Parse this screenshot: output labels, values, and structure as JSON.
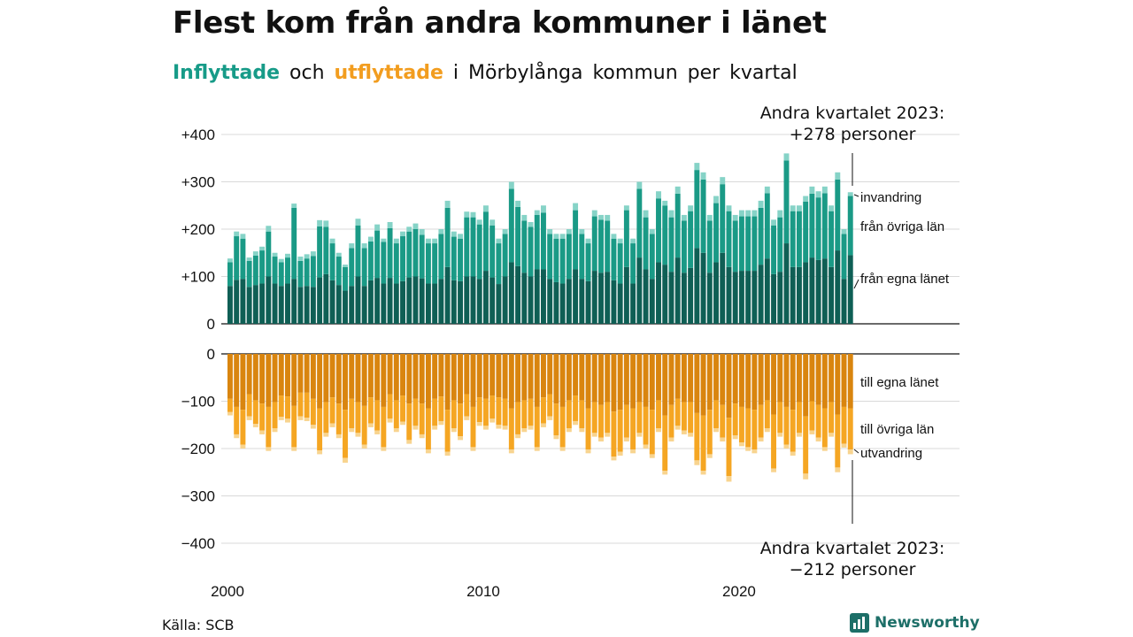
{
  "title": "Flest kom från andra kommuner i länet",
  "subtitle": {
    "part1": "Inflyttade",
    "part2": "och",
    "part3": "utflyttade",
    "part4": "i Mörbylånga kommun per kvartal"
  },
  "annotation_top": {
    "line1": "Andra kvartalet 2023:",
    "line2": "+278 personer"
  },
  "annotation_bottom": {
    "line1": "Andra kvartalet 2023:",
    "line2": "−212 personer"
  },
  "source": "Källa: SCB",
  "brand": "Newsworthy",
  "colors": {
    "in_egna": "#0f5f55",
    "in_ovriga": "#1a9a86",
    "in_invandring": "#86d3c7",
    "out_egna": "#d9850f",
    "out_ovriga": "#f5a623",
    "out_utvandring": "#f8d48f",
    "grid": "#d9d9d9",
    "axis": "#111111"
  },
  "chart_data": {
    "type": "bar",
    "stacked": true,
    "x_start": "2000Q1",
    "x_end": "2023Q2",
    "x_tick_labels": [
      "2000",
      "2010",
      "2020"
    ],
    "y_tick_labels_top": [
      "+400",
      "+300",
      "+200",
      "+100",
      "0"
    ],
    "y_tick_labels_bottom": [
      "0",
      "−100",
      "−200",
      "−300",
      "−400"
    ],
    "ylim_top": [
      0,
      400
    ],
    "ylim_bottom": [
      -400,
      0
    ],
    "series_labels": {
      "in_invandring": "invandring",
      "in_ovriga": "från övriga län",
      "in_egna": "från egna länet",
      "out_egna": "till egna länet",
      "out_ovriga": "till övriga län",
      "out_utvandring": "utvandring"
    },
    "inflyttade": {
      "total": [
        138,
        195,
        190,
        140,
        153,
        163,
        207,
        150,
        137,
        148,
        254,
        142,
        147,
        153,
        219,
        218,
        180,
        150,
        125,
        170,
        222,
        170,
        184,
        210,
        180,
        215,
        180,
        195,
        205,
        212,
        200,
        180,
        180,
        200,
        260,
        195,
        190,
        237,
        236,
        220,
        250,
        220,
        180,
        200,
        300,
        260,
        230,
        215,
        240,
        250,
        200,
        190,
        190,
        200,
        255,
        200,
        180,
        240,
        230,
        230,
        190,
        180,
        250,
        180,
        300,
        240,
        200,
        280,
        260,
        240,
        290,
        230,
        250,
        340,
        320,
        230,
        270,
        310,
        250,
        230,
        240,
        240,
        240,
        260,
        290,
        220,
        240,
        360,
        250,
        250,
        270,
        290,
        280,
        290,
        250,
        320,
        200,
        278
      ],
      "egna": [
        80,
        93,
        95,
        78,
        82,
        85,
        100,
        85,
        80,
        85,
        95,
        78,
        80,
        78,
        98,
        105,
        92,
        82,
        70,
        80,
        100,
        80,
        92,
        97,
        85,
        97,
        85,
        90,
        98,
        100,
        96,
        85,
        85,
        95,
        120,
        92,
        90,
        100,
        100,
        95,
        112,
        98,
        84,
        100,
        130,
        122,
        108,
        100,
        115,
        115,
        95,
        88,
        85,
        95,
        115,
        95,
        90,
        112,
        108,
        110,
        92,
        85,
        120,
        85,
        140,
        115,
        95,
        130,
        125,
        110,
        140,
        108,
        118,
        160,
        150,
        108,
        130,
        150,
        120,
        110,
        112,
        112,
        112,
        125,
        138,
        105,
        110,
        170,
        120,
        120,
        130,
        140,
        135,
        138,
        120,
        155,
        95,
        145
      ],
      "ovriga": [
        50,
        92,
        85,
        55,
        62,
        70,
        95,
        57,
        50,
        55,
        150,
        55,
        58,
        65,
        108,
        100,
        78,
        60,
        50,
        80,
        108,
        80,
        82,
        100,
        88,
        105,
        85,
        95,
        97,
        100,
        92,
        85,
        85,
        95,
        125,
        92,
        90,
        125,
        125,
        115,
        125,
        110,
        86,
        90,
        155,
        125,
        110,
        105,
        115,
        120,
        95,
        92,
        95,
        95,
        125,
        95,
        80,
        115,
        112,
        108,
        88,
        85,
        120,
        85,
        145,
        110,
        95,
        135,
        125,
        115,
        135,
        110,
        120,
        165,
        155,
        110,
        125,
        145,
        118,
        108,
        115,
        115,
        115,
        120,
        138,
        103,
        115,
        175,
        118,
        118,
        128,
        135,
        132,
        138,
        118,
        150,
        95,
        125
      ],
      "invandring": [
        8,
        10,
        10,
        7,
        9,
        8,
        12,
        8,
        7,
        8,
        9,
        9,
        9,
        10,
        13,
        13,
        10,
        8,
        5,
        10,
        14,
        10,
        10,
        13,
        7,
        13,
        10,
        10,
        10,
        12,
        12,
        10,
        10,
        10,
        15,
        11,
        10,
        12,
        11,
        10,
        13,
        12,
        10,
        10,
        15,
        13,
        12,
        10,
        10,
        15,
        10,
        10,
        10,
        10,
        15,
        10,
        10,
        13,
        10,
        12,
        10,
        10,
        10,
        10,
        15,
        15,
        10,
        15,
        10,
        15,
        15,
        12,
        12,
        15,
        15,
        12,
        15,
        15,
        12,
        12,
        13,
        13,
        13,
        15,
        14,
        12,
        15,
        15,
        12,
        12,
        12,
        15,
        13,
        14,
        12,
        15,
        10,
        8
      ]
    },
    "utflyttade": {
      "total": [
        -130,
        -178,
        -200,
        -140,
        -155,
        -170,
        -205,
        -165,
        -140,
        -145,
        -205,
        -140,
        -142,
        -158,
        -212,
        -175,
        -155,
        -178,
        -230,
        -165,
        -175,
        -200,
        -155,
        -170,
        -205,
        -145,
        -165,
        -150,
        -190,
        -160,
        -178,
        -210,
        -160,
        -150,
        -215,
        -165,
        -182,
        -140,
        -205,
        -152,
        -160,
        -145,
        -158,
        -160,
        -210,
        -178,
        -165,
        -160,
        -205,
        -155,
        -140,
        -180,
        -205,
        -165,
        -150,
        -165,
        -210,
        -175,
        -185,
        -175,
        -225,
        -215,
        -185,
        -210,
        -175,
        -200,
        -220,
        -165,
        -255,
        -185,
        -160,
        -170,
        -175,
        -235,
        -255,
        -220,
        -165,
        -185,
        -270,
        -180,
        -195,
        -205,
        -210,
        -185,
        -165,
        -250,
        -175,
        -200,
        -215,
        -175,
        -265,
        -170,
        -185,
        -205,
        -175,
        -250,
        -198,
        -212
      ],
      "egna": [
        -95,
        -112,
        -118,
        -85,
        -98,
        -105,
        -112,
        -102,
        -88,
        -90,
        -110,
        -82,
        -82,
        -95,
        -115,
        -102,
        -92,
        -105,
        -118,
        -95,
        -102,
        -110,
        -92,
        -98,
        -112,
        -85,
        -98,
        -88,
        -105,
        -95,
        -105,
        -115,
        -95,
        -90,
        -118,
        -98,
        -105,
        -85,
        -112,
        -92,
        -95,
        -88,
        -92,
        -95,
        -115,
        -102,
        -98,
        -95,
        -112,
        -92,
        -85,
        -105,
        -112,
        -98,
        -88,
        -98,
        -115,
        -102,
        -108,
        -102,
        -122,
        -118,
        -108,
        -115,
        -102,
        -112,
        -118,
        -98,
        -130,
        -108,
        -95,
        -102,
        -102,
        -125,
        -130,
        -118,
        -98,
        -108,
        -135,
        -105,
        -112,
        -115,
        -118,
        -108,
        -98,
        -128,
        -102,
        -112,
        -118,
        -102,
        -132,
        -100,
        -108,
        -115,
        -102,
        -128,
        -112,
        -115
      ],
      "ovriga": [
        -28,
        -58,
        -74,
        -47,
        -50,
        -57,
        -85,
        -55,
        -45,
        -47,
        -87,
        -50,
        -53,
        -55,
        -89,
        -65,
        -55,
        -65,
        -102,
        -62,
        -65,
        -82,
        -55,
        -64,
        -85,
        -52,
        -59,
        -55,
        -77,
        -57,
        -65,
        -87,
        -57,
        -52,
        -89,
        -59,
        -69,
        -47,
        -85,
        -52,
        -57,
        -49,
        -58,
        -57,
        -87,
        -68,
        -59,
        -57,
        -85,
        -55,
        -47,
        -67,
        -85,
        -59,
        -54,
        -59,
        -87,
        -65,
        -69,
        -65,
        -95,
        -89,
        -69,
        -87,
        -65,
        -80,
        -94,
        -59,
        -117,
        -69,
        -57,
        -60,
        -65,
        -100,
        -117,
        -94,
        -59,
        -69,
        -123,
        -67,
        -75,
        -82,
        -84,
        -69,
        -59,
        -114,
        -65,
        -80,
        -89,
        -65,
        -121,
        -62,
        -69,
        -82,
        -65,
        -112,
        -78,
        -87
      ],
      "utvandring": [
        -7,
        -8,
        -8,
        -8,
        -7,
        -8,
        -8,
        -8,
        -7,
        -8,
        -8,
        -8,
        -7,
        -8,
        -8,
        -8,
        -8,
        -8,
        -10,
        -8,
        -8,
        -8,
        -8,
        -8,
        -8,
        -8,
        -8,
        -7,
        -8,
        -8,
        -8,
        -8,
        -8,
        -8,
        -8,
        -8,
        -8,
        -8,
        -8,
        -8,
        -8,
        -8,
        -8,
        -8,
        -8,
        -8,
        -8,
        -8,
        -8,
        -8,
        -8,
        -8,
        -8,
        -8,
        -8,
        -8,
        -8,
        -8,
        -8,
        -8,
        -8,
        -8,
        -8,
        -8,
        -8,
        -8,
        -8,
        -8,
        -8,
        -8,
        -8,
        -8,
        -8,
        -10,
        -8,
        -8,
        -8,
        -8,
        -12,
        -8,
        -8,
        -8,
        -8,
        -8,
        -8,
        -8,
        -8,
        -8,
        -8,
        -8,
        -12,
        -8,
        -8,
        -8,
        -8,
        -10,
        -8,
        -10
      ]
    }
  }
}
